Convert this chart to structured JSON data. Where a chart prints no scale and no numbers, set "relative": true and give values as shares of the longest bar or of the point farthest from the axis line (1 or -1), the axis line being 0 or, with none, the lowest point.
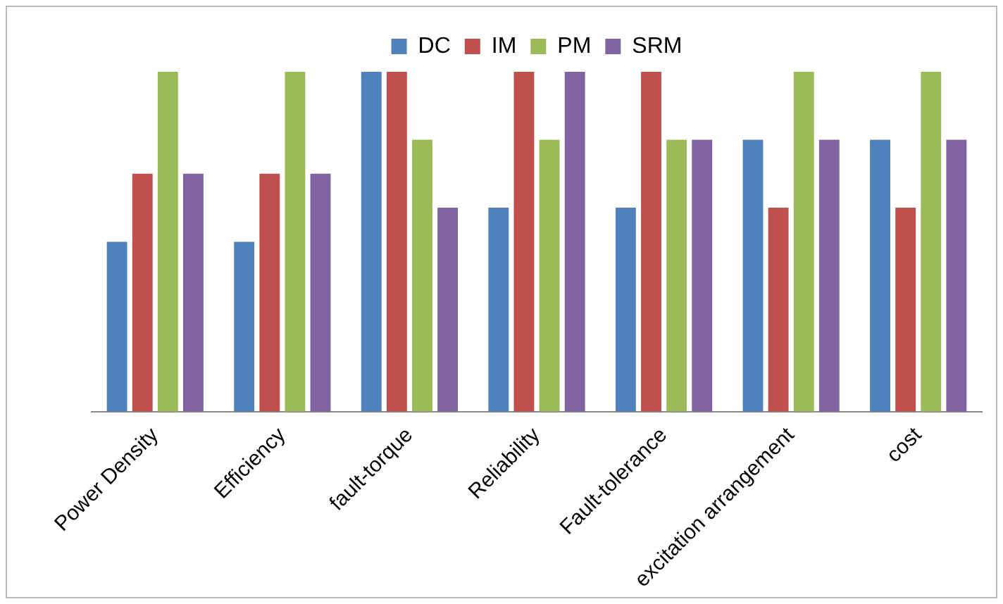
{
  "chart_data": {
    "type": "bar",
    "relative": true,
    "legend": "top",
    "grid": false,
    "categories": [
      "Power Density",
      "Efficiency",
      "fault-torque",
      "Reliability",
      "Fault-tolerance",
      "excitation arrangement",
      "cost"
    ],
    "series": [
      {
        "name": "DC",
        "color": "#4f81bd",
        "values": [
          0.5,
          0.5,
          1,
          0.6,
          0.6,
          0.8,
          0.8
        ]
      },
      {
        "name": "IM",
        "color": "#c0504d",
        "values": [
          0.7,
          0.7,
          1,
          1,
          1,
          0.6,
          0.6
        ]
      },
      {
        "name": "PM",
        "color": "#9bbb59",
        "values": [
          1,
          1,
          0.8,
          0.8,
          0.8,
          1,
          1
        ]
      },
      {
        "name": "SRM",
        "color": "#8064a2",
        "values": [
          0.7,
          0.7,
          0.6,
          1,
          0.8,
          0.8,
          0.8
        ]
      }
    ]
  }
}
